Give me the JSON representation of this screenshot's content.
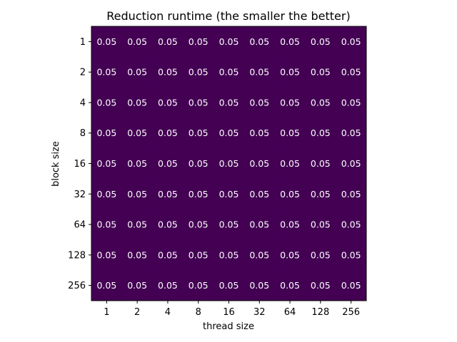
{
  "chart_data": {
    "type": "heatmap",
    "title": "Reduction runtime (the smaller the better)",
    "xlabel": "thread size",
    "ylabel": "block size",
    "x_categories": [
      "1",
      "2",
      "4",
      "8",
      "16",
      "32",
      "64",
      "128",
      "256"
    ],
    "y_categories": [
      "1",
      "2",
      "4",
      "8",
      "16",
      "32",
      "64",
      "128",
      "256"
    ],
    "values": [
      [
        0.05,
        0.05,
        0.05,
        0.05,
        0.05,
        0.05,
        0.05,
        0.05,
        0.05
      ],
      [
        0.05,
        0.05,
        0.05,
        0.05,
        0.05,
        0.05,
        0.05,
        0.05,
        0.05
      ],
      [
        0.05,
        0.05,
        0.05,
        0.05,
        0.05,
        0.05,
        0.05,
        0.05,
        0.05
      ],
      [
        0.05,
        0.05,
        0.05,
        0.05,
        0.05,
        0.05,
        0.05,
        0.05,
        0.05
      ],
      [
        0.05,
        0.05,
        0.05,
        0.05,
        0.05,
        0.05,
        0.05,
        0.05,
        0.05
      ],
      [
        0.05,
        0.05,
        0.05,
        0.05,
        0.05,
        0.05,
        0.05,
        0.05,
        0.05
      ],
      [
        0.05,
        0.05,
        0.05,
        0.05,
        0.05,
        0.05,
        0.05,
        0.05,
        0.05
      ],
      [
        0.05,
        0.05,
        0.05,
        0.05,
        0.05,
        0.05,
        0.05,
        0.05,
        0.05
      ],
      [
        0.05,
        0.05,
        0.05,
        0.05,
        0.05,
        0.05,
        0.05,
        0.05,
        0.05
      ]
    ],
    "colormap": "viridis",
    "cell_color": "#440154",
    "label_color": "#ffffff",
    "grid": false
  }
}
